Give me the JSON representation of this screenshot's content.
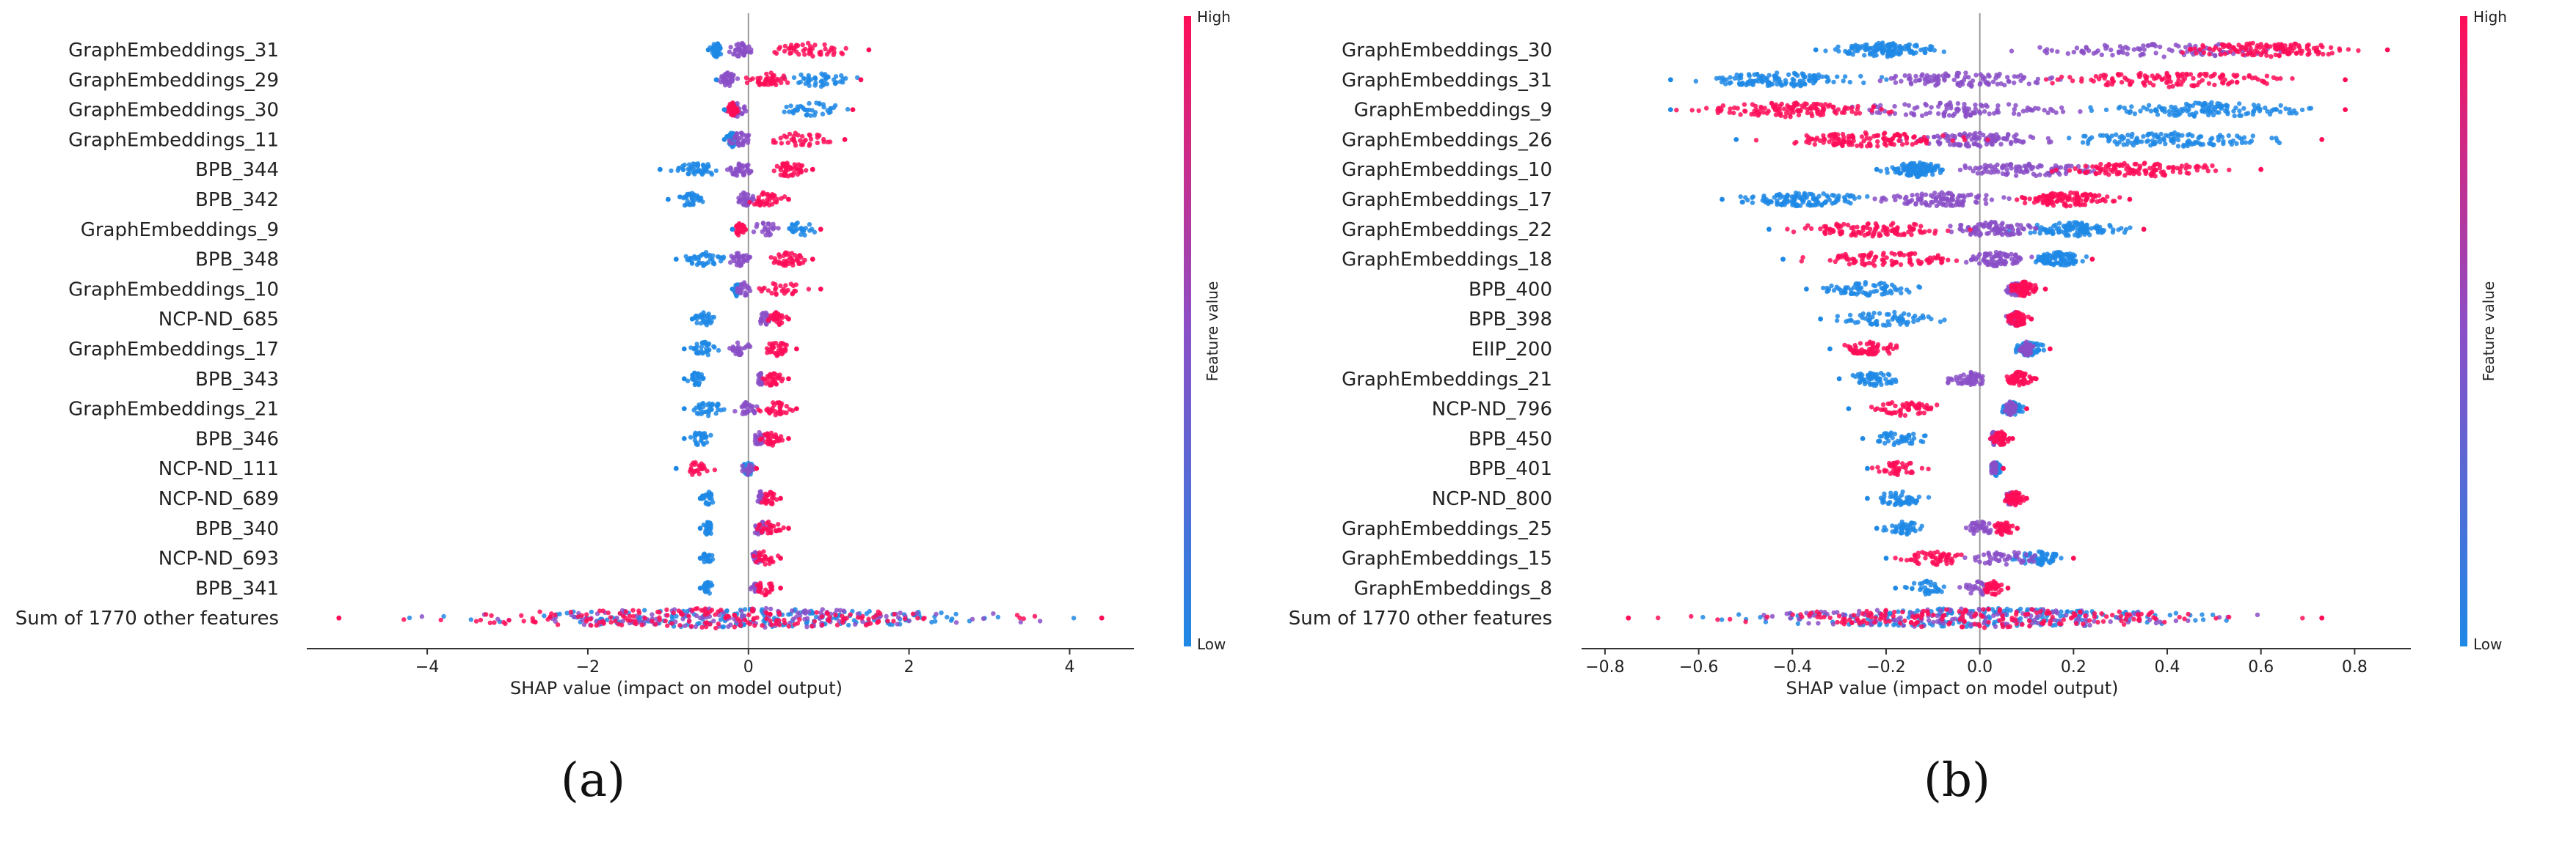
{
  "captions": [
    "(a)",
    "(b)"
  ],
  "colors": {
    "low": "#1e88e5",
    "high": "#ff0d57",
    "axis": "#333333",
    "zero_line": "#999999"
  },
  "chart_data": [
    {
      "type": "scatter",
      "subtype": "shap-beeswarm",
      "caption": "(a)",
      "xlabel": "SHAP value (impact on model output)",
      "xlim": [
        -5.5,
        4.8
      ],
      "xticks": [
        -4,
        -2,
        0,
        2,
        4
      ],
      "xtick_labels": [
        "−4",
        "−2",
        "0",
        "2",
        "4"
      ],
      "colorbar": {
        "title": "Feature value",
        "high": "High",
        "low": "Low"
      },
      "features": [
        {
          "name": "GraphEmbeddings_31",
          "min": -0.5,
          "max": 1.5,
          "blue": [
            -0.5,
            -0.3
          ],
          "purple": [
            -0.3,
            0.1
          ],
          "pink": [
            0.1,
            1.5
          ]
        },
        {
          "name": "GraphEmbeddings_29",
          "min": -0.4,
          "max": 1.4,
          "blue": [
            0.3,
            1.4
          ],
          "purple": [
            -0.4,
            -0.1
          ],
          "pink": [
            -0.1,
            0.6
          ]
        },
        {
          "name": "GraphEmbeddings_30",
          "min": -0.3,
          "max": 1.3,
          "blue": [
            0.3,
            1.3
          ],
          "purple": [
            -0.3,
            0.0
          ],
          "pink": [
            -0.3,
            -0.1
          ]
        },
        {
          "name": "GraphEmbeddings_11",
          "min": -0.3,
          "max": 1.2,
          "blue": [
            -0.3,
            -0.1
          ],
          "purple": [
            -0.3,
            0.1
          ],
          "pink": [
            0.1,
            1.2
          ]
        },
        {
          "name": "BPB_344",
          "min": -1.1,
          "max": 0.8,
          "blue": [
            -1.1,
            -0.2
          ],
          "purple": [
            -0.3,
            0.1
          ],
          "pink": [
            0.2,
            0.8
          ]
        },
        {
          "name": "BPB_342",
          "min": -1.0,
          "max": 0.5,
          "blue": [
            -1.0,
            -0.5
          ],
          "purple": [
            -0.2,
            0.1
          ],
          "pink": [
            -0.1,
            0.5
          ]
        },
        {
          "name": "GraphEmbeddings_9",
          "min": -0.2,
          "max": 0.9,
          "blue": [
            0.4,
            0.9
          ],
          "purple": [
            -0.1,
            0.5
          ],
          "pink": [
            -0.2,
            0.0
          ]
        },
        {
          "name": "BPB_348",
          "min": -0.9,
          "max": 0.8,
          "blue": [
            -0.9,
            -0.2
          ],
          "purple": [
            -0.3,
            0.1
          ],
          "pink": [
            0.2,
            0.8
          ]
        },
        {
          "name": "GraphEmbeddings_10",
          "min": -0.2,
          "max": 0.9,
          "blue": [
            -0.2,
            -0.1
          ],
          "purple": [
            -0.2,
            0.1
          ],
          "pink": [
            0.0,
            0.9
          ]
        },
        {
          "name": "NCP-ND_685",
          "min": -0.7,
          "max": 0.5,
          "blue": [
            -0.7,
            -0.4
          ],
          "purple": [
            0.1,
            0.3
          ],
          "pink": [
            0.2,
            0.5
          ]
        },
        {
          "name": "GraphEmbeddings_17",
          "min": -0.8,
          "max": 0.6,
          "blue": [
            -0.8,
            -0.3
          ],
          "purple": [
            -0.3,
            0.1
          ],
          "pink": [
            0.1,
            0.6
          ]
        },
        {
          "name": "BPB_343",
          "min": -0.8,
          "max": 0.5,
          "blue": [
            -0.8,
            -0.5
          ],
          "purple": [
            0.1,
            0.2
          ],
          "pink": [
            0.1,
            0.5
          ]
        },
        {
          "name": "GraphEmbeddings_21",
          "min": -0.8,
          "max": 0.6,
          "blue": [
            -0.8,
            -0.2
          ],
          "purple": [
            -0.2,
            0.2
          ],
          "pink": [
            0.1,
            0.6
          ]
        },
        {
          "name": "BPB_346",
          "min": -0.8,
          "max": 0.5,
          "blue": [
            -0.8,
            -0.4
          ],
          "purple": [
            0.0,
            0.3
          ],
          "pink": [
            0.1,
            0.5
          ]
        },
        {
          "name": "NCP-ND_111",
          "min": -0.9,
          "max": 0.1,
          "blue": [
            -0.1,
            0.1
          ],
          "purple": [
            -0.1,
            0.1
          ],
          "pink": [
            -0.9,
            -0.4
          ]
        },
        {
          "name": "NCP-ND_689",
          "min": -0.6,
          "max": 0.4,
          "blue": [
            -0.6,
            -0.4
          ],
          "purple": [
            0.1,
            0.2
          ],
          "pink": [
            0.1,
            0.4
          ]
        },
        {
          "name": "BPB_340",
          "min": -0.6,
          "max": 0.5,
          "blue": [
            -0.6,
            -0.4
          ],
          "purple": [
            0.0,
            0.3
          ],
          "pink": [
            0.0,
            0.5
          ]
        },
        {
          "name": "NCP-ND_693",
          "min": -0.6,
          "max": 0.4,
          "blue": [
            -0.6,
            -0.4
          ],
          "purple": [
            0.0,
            0.2
          ],
          "pink": [
            0.0,
            0.4
          ]
        },
        {
          "name": "BPB_341",
          "min": -0.6,
          "max": 0.4,
          "blue": [
            -0.6,
            -0.4
          ],
          "purple": [
            0.0,
            0.2
          ],
          "pink": [
            0.0,
            0.4
          ]
        },
        {
          "name": "Sum of 1770 other features",
          "min": -5.1,
          "max": 4.4,
          "blue": [
            -4.6,
            4.3
          ],
          "purple": [
            -4.5,
            4.4
          ],
          "pink": [
            -5.1,
            4.4
          ]
        }
      ]
    },
    {
      "type": "scatter",
      "subtype": "shap-beeswarm",
      "caption": "(b)",
      "xlabel": "SHAP value (impact on model output)",
      "xlim": [
        -0.85,
        0.92
      ],
      "xticks": [
        -0.8,
        -0.6,
        -0.4,
        -0.2,
        0.0,
        0.2,
        0.4,
        0.6,
        0.8
      ],
      "xtick_labels": [
        "−0.8",
        "−0.6",
        "−0.4",
        "−0.2",
        "0.0",
        "0.2",
        "0.4",
        "0.6",
        "0.8"
      ],
      "colorbar": {
        "title": "Feature value",
        "high": "High",
        "low": "Low"
      },
      "features": [
        {
          "name": "GraphEmbeddings_30",
          "min": -0.35,
          "max": 0.87,
          "blue": [
            -0.35,
            -0.05
          ],
          "purple": [
            -0.05,
            0.87
          ],
          "pink": [
            0.35,
            0.87
          ]
        },
        {
          "name": "GraphEmbeddings_31",
          "min": -0.66,
          "max": 0.78,
          "blue": [
            -0.66,
            -0.18
          ],
          "purple": [
            -0.3,
            0.25
          ],
          "pink": [
            0.02,
            0.78
          ]
        },
        {
          "name": "GraphEmbeddings_9",
          "min": -0.66,
          "max": 0.78,
          "blue": [
            0.2,
            0.78
          ],
          "purple": [
            -0.4,
            0.3
          ],
          "pink": [
            -0.66,
            -0.15
          ]
        },
        {
          "name": "GraphEmbeddings_26",
          "min": -0.52,
          "max": 0.73,
          "blue": [
            0.1,
            0.73
          ],
          "purple": [
            -0.2,
            0.2
          ],
          "pink": [
            -0.52,
            0.05
          ]
        },
        {
          "name": "GraphEmbeddings_10",
          "min": -0.22,
          "max": 0.6,
          "blue": [
            -0.22,
            -0.05
          ],
          "purple": [
            -0.1,
            0.3
          ],
          "pink": [
            0.1,
            0.6
          ]
        },
        {
          "name": "GraphEmbeddings_17",
          "min": -0.55,
          "max": 0.32,
          "blue": [
            -0.55,
            -0.2
          ],
          "purple": [
            -0.25,
            0.1
          ],
          "pink": [
            0.05,
            0.32
          ]
        },
        {
          "name": "GraphEmbeddings_22",
          "min": -0.45,
          "max": 0.35,
          "blue": [
            0.05,
            0.35
          ],
          "purple": [
            -0.1,
            0.15
          ],
          "pink": [
            -0.45,
            0.0
          ]
        },
        {
          "name": "GraphEmbeddings_18",
          "min": -0.42,
          "max": 0.24,
          "blue": [
            0.1,
            0.24
          ],
          "purple": [
            -0.05,
            0.12
          ],
          "pink": [
            -0.42,
            0.02
          ]
        },
        {
          "name": "BPB_400",
          "min": -0.37,
          "max": 0.14,
          "blue": [
            -0.37,
            -0.1
          ],
          "purple": [
            0.05,
            0.1
          ],
          "pink": [
            0.05,
            0.14
          ]
        },
        {
          "name": "BPB_398",
          "min": -0.34,
          "max": 0.11,
          "blue": [
            -0.34,
            -0.05
          ],
          "purple": [
            0.05,
            0.1
          ],
          "pink": [
            0.05,
            0.11
          ]
        },
        {
          "name": "EIIP_200",
          "min": -0.32,
          "max": 0.15,
          "blue": [
            0.06,
            0.15
          ],
          "purple": [
            0.08,
            0.12
          ],
          "pink": [
            -0.32,
            -0.15
          ]
        },
        {
          "name": "GraphEmbeddings_21",
          "min": -0.3,
          "max": 0.12,
          "blue": [
            -0.3,
            -0.15
          ],
          "purple": [
            -0.1,
            0.05
          ],
          "pink": [
            0.05,
            0.12
          ]
        },
        {
          "name": "NCP-ND_796",
          "min": -0.28,
          "max": 0.1,
          "blue": [
            0.04,
            0.1
          ],
          "purple": [
            0.05,
            0.08
          ],
          "pink": [
            -0.28,
            -0.05
          ]
        },
        {
          "name": "BPB_450",
          "min": -0.25,
          "max": 0.07,
          "blue": [
            -0.25,
            -0.1
          ],
          "purple": [
            0.02,
            0.04
          ],
          "pink": [
            0.02,
            0.07
          ]
        },
        {
          "name": "BPB_401",
          "min": -0.24,
          "max": 0.05,
          "blue": [
            0.02,
            0.05
          ],
          "purple": [
            0.02,
            0.04
          ],
          "pink": [
            -0.24,
            -0.1
          ]
        },
        {
          "name": "NCP-ND_800",
          "min": -0.24,
          "max": 0.1,
          "blue": [
            -0.24,
            -0.1
          ],
          "purple": [
            0.05,
            0.08
          ],
          "pink": [
            0.05,
            0.1
          ]
        },
        {
          "name": "GraphEmbeddings_25",
          "min": -0.22,
          "max": 0.08,
          "blue": [
            -0.22,
            -0.1
          ],
          "purple": [
            -0.05,
            0.05
          ],
          "pink": [
            0.02,
            0.08
          ]
        },
        {
          "name": "GraphEmbeddings_15",
          "min": -0.2,
          "max": 0.2,
          "blue": [
            0.05,
            0.2
          ],
          "purple": [
            -0.05,
            0.15
          ],
          "pink": [
            -0.2,
            0.0
          ]
        },
        {
          "name": "GraphEmbeddings_8",
          "min": -0.18,
          "max": 0.06,
          "blue": [
            -0.18,
            -0.05
          ],
          "purple": [
            -0.05,
            0.05
          ],
          "pink": [
            0.0,
            0.06
          ]
        },
        {
          "name": "Sum of 1770 other features",
          "min": -0.75,
          "max": 0.73,
          "blue": [
            -0.7,
            0.7
          ],
          "purple": [
            -0.7,
            0.7
          ],
          "pink": [
            -0.75,
            0.73
          ]
        }
      ]
    }
  ]
}
